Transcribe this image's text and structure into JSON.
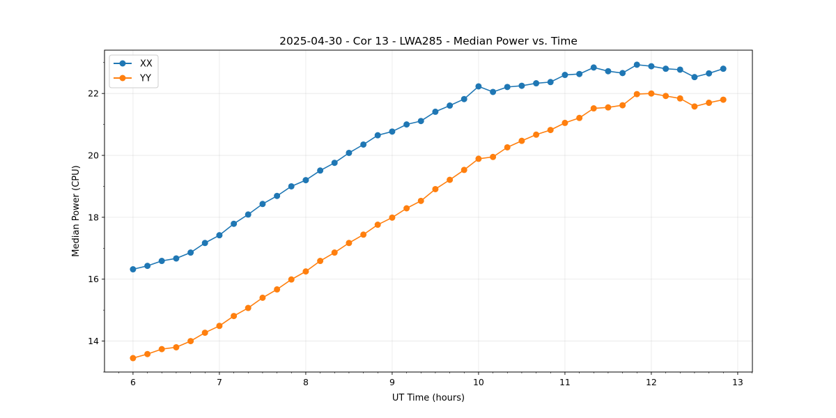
{
  "chart_data": {
    "type": "line",
    "title": "2025-04-30 - Cor 13 - LWA285 - Median Power vs. Time",
    "xlabel": "UT Time (hours)",
    "ylabel": "Median Power (CPU)",
    "xlim": [
      5.67,
      13.17
    ],
    "ylim": [
      13.0,
      23.4
    ],
    "xticks": [
      6,
      7,
      8,
      9,
      10,
      11,
      12,
      13
    ],
    "yticks": [
      14,
      16,
      18,
      20,
      22
    ],
    "grid": true,
    "legend_position": "top-left",
    "x": [
      6.0,
      6.167,
      6.333,
      6.5,
      6.667,
      6.833,
      7.0,
      7.167,
      7.333,
      7.5,
      7.667,
      7.833,
      8.0,
      8.167,
      8.333,
      8.5,
      8.667,
      8.833,
      9.0,
      9.167,
      9.333,
      9.5,
      9.667,
      9.833,
      10.0,
      10.167,
      10.333,
      10.5,
      10.667,
      10.833,
      11.0,
      11.167,
      11.333,
      11.5,
      11.667,
      11.833,
      12.0,
      12.167,
      12.333,
      12.5,
      12.667,
      12.833
    ],
    "series": [
      {
        "name": "XX",
        "color": "#1f77b4",
        "values": [
          16.32,
          16.43,
          16.59,
          16.67,
          16.86,
          17.17,
          17.42,
          17.79,
          18.09,
          18.43,
          18.69,
          19.0,
          19.2,
          19.51,
          19.76,
          20.08,
          20.35,
          20.65,
          20.77,
          21.0,
          21.11,
          21.41,
          21.61,
          21.82,
          22.23,
          22.05,
          22.21,
          22.25,
          22.33,
          22.37,
          22.6,
          22.63,
          22.84,
          22.72,
          22.66,
          22.93,
          22.88,
          22.8,
          22.77,
          22.53,
          22.65,
          22.8
        ]
      },
      {
        "name": "YY",
        "color": "#ff7f0e",
        "values": [
          13.45,
          13.58,
          13.74,
          13.8,
          14.0,
          14.27,
          14.49,
          14.81,
          15.07,
          15.4,
          15.67,
          15.99,
          16.25,
          16.59,
          16.86,
          17.17,
          17.44,
          17.76,
          17.99,
          18.29,
          18.53,
          18.91,
          19.21,
          19.53,
          19.89,
          19.95,
          20.26,
          20.47,
          20.67,
          20.82,
          21.05,
          21.21,
          21.52,
          21.55,
          21.62,
          21.98,
          22.0,
          21.92,
          21.84,
          21.58,
          21.7,
          21.8
        ]
      }
    ]
  }
}
